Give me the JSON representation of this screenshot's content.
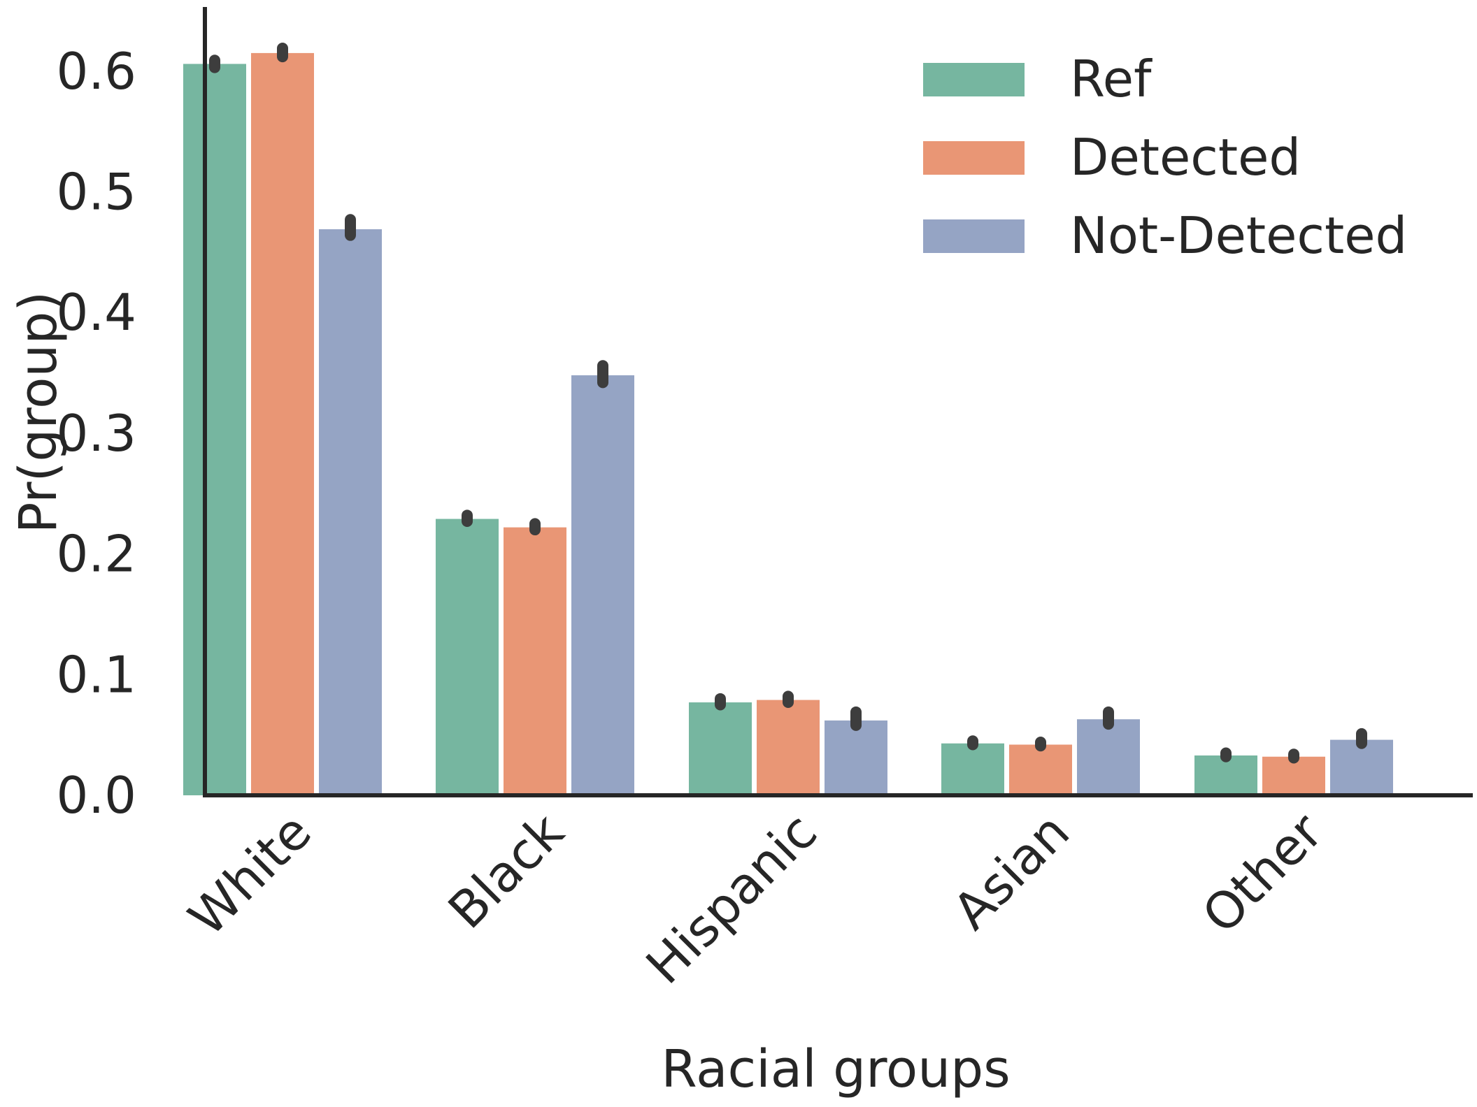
{
  "chart_data": {
    "type": "bar",
    "xlabel": "Racial groups",
    "ylabel": "Pr(group)",
    "ylim": [
      0,
      0.65
    ],
    "yticks": [
      0.0,
      0.1,
      0.2,
      0.3,
      0.4,
      0.5,
      0.6
    ],
    "ytick_labels": [
      "0.0",
      "0.1",
      "0.2",
      "0.3",
      "0.4",
      "0.5",
      "0.6"
    ],
    "categories": [
      "White",
      "Black",
      "Hispanic",
      "Asian",
      "Other"
    ],
    "series": [
      {
        "name": "Ref",
        "color": "#76b6a0",
        "values": [
          0.606,
          0.229,
          0.077,
          0.043,
          0.033
        ],
        "err_low": [
          0.603,
          0.227,
          0.075,
          0.042,
          0.032
        ],
        "err_high": [
          0.609,
          0.232,
          0.08,
          0.045,
          0.035
        ]
      },
      {
        "name": "Detected",
        "color": "#e99675",
        "values": [
          0.615,
          0.222,
          0.079,
          0.042,
          0.032
        ],
        "err_low": [
          0.612,
          0.22,
          0.077,
          0.041,
          0.031
        ],
        "err_high": [
          0.619,
          0.225,
          0.082,
          0.044,
          0.034
        ]
      },
      {
        "name": "Not-Detected",
        "color": "#95a4c4",
        "values": [
          0.469,
          0.348,
          0.062,
          0.063,
          0.046
        ],
        "err_low": [
          0.464,
          0.342,
          0.058,
          0.059,
          0.043
        ],
        "err_high": [
          0.477,
          0.356,
          0.069,
          0.069,
          0.051
        ]
      }
    ],
    "legend": {
      "position": "top-right"
    },
    "grid": false
  }
}
